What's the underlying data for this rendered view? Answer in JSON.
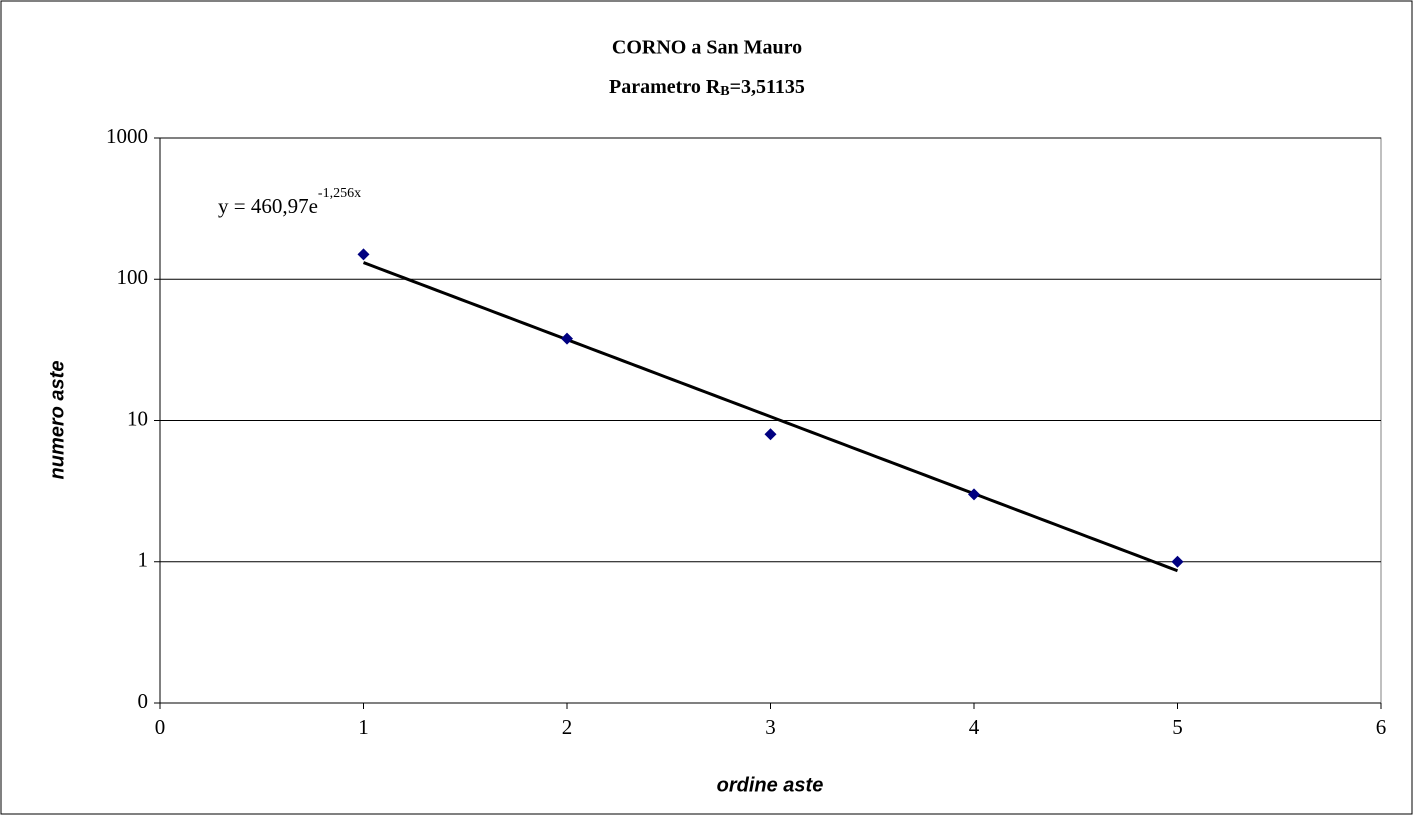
{
  "chart_data": {
    "type": "scatter",
    "title": "CORNO a San Mauro",
    "subtitle": {
      "text": "Parametro R",
      "subscript": "B",
      "suffix": "=3,51135"
    },
    "x_label": "ordine aste",
    "y_label": "numero aste",
    "x": [
      1,
      2,
      3,
      4,
      5
    ],
    "series": [
      {
        "values": [
          150,
          38,
          8,
          3,
          1
        ],
        "color": "#000080"
      }
    ],
    "trendline": {
      "a": 460.97,
      "b": -1.256,
      "color": "#000000",
      "equation": {
        "text": "y = 460,97e",
        "exponent": "-1,256x"
      }
    },
    "xlim": [
      0,
      6
    ],
    "xticks": [
      0,
      1,
      2,
      3,
      4,
      5,
      6
    ],
    "ylim": [
      0.1,
      1000
    ],
    "yscale": "log",
    "yticks": [
      {
        "value": 0.1,
        "label": "0"
      },
      1,
      10,
      100,
      1000
    ],
    "grid": true
  }
}
